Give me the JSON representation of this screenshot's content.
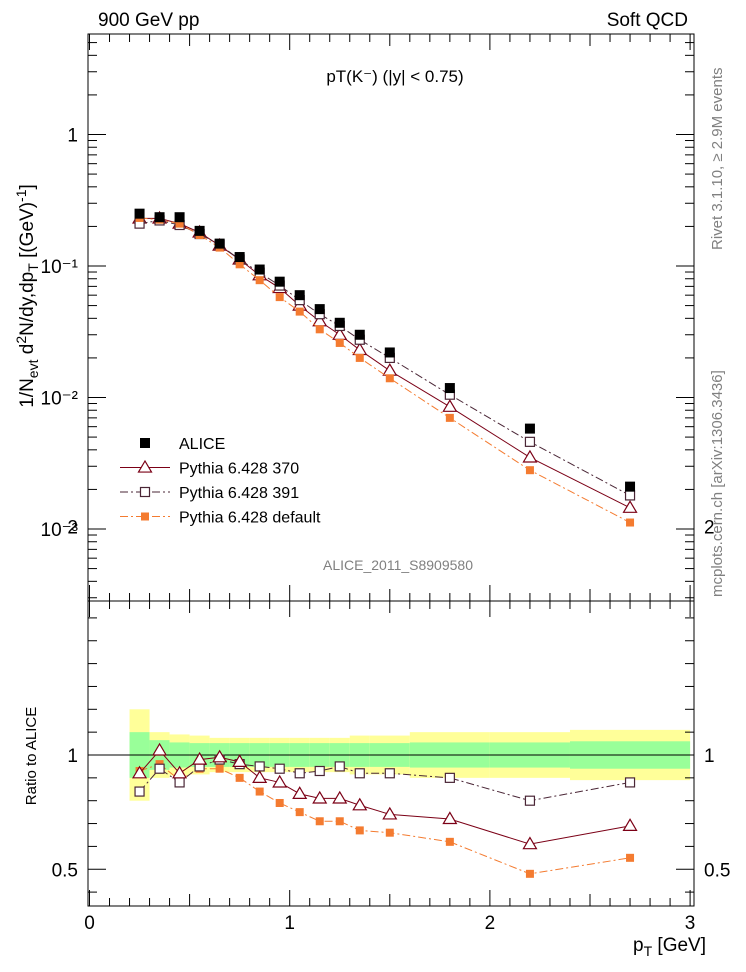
{
  "header": {
    "left": "900 GeV pp",
    "right": "Soft QCD"
  },
  "side_labels": {
    "rivet": "Rivet 3.1.10, ≥ 2.9M events",
    "source": "mcplots.cern.ch [arXiv:1306.3436]"
  },
  "chart_data": [
    {
      "type": "scatter",
      "panel": "main",
      "title": "pT(K⁻) (|y| < 0.75)",
      "watermark": "ALICE_2011_S8909580",
      "ylabel": "1/N_evt d²N/dy,dp_T [(GeV)⁻¹]",
      "yscale": "log",
      "xlim": [
        0,
        3.05
      ],
      "ylim": [
        0.00025,
        6
      ],
      "y_tick_labels": [
        "10⁻³",
        "10⁻²",
        "10⁻¹",
        "1"
      ],
      "x": [
        0.25,
        0.35,
        0.45,
        0.55,
        0.65,
        0.75,
        0.85,
        0.95,
        1.05,
        1.15,
        1.25,
        1.35,
        1.5,
        1.8,
        2.2,
        2.7
      ],
      "series": [
        {
          "name": "ALICE",
          "color": "#000000",
          "marker": "filled-square",
          "values": [
            0.25,
            0.235,
            0.235,
            0.185,
            0.148,
            0.117,
            0.094,
            0.076,
            0.06,
            0.047,
            0.037,
            0.03,
            0.022,
            0.0118,
            0.0058,
            0.0021
          ]
        },
        {
          "name": "Pythia 6.428 370",
          "color": "#7b0016",
          "marker": "open-triangle",
          "line": "solid",
          "values": [
            0.23,
            0.23,
            0.21,
            0.18,
            0.143,
            0.112,
            0.085,
            0.068,
            0.05,
            0.038,
            0.03,
            0.023,
            0.016,
            0.0085,
            0.0035,
            0.00145
          ]
        },
        {
          "name": "Pythia 6.428 391",
          "color": "#4a2636",
          "marker": "open-square",
          "line": "dashdot",
          "values": [
            0.21,
            0.222,
            0.205,
            0.175,
            0.145,
            0.112,
            0.089,
            0.071,
            0.055,
            0.043,
            0.035,
            0.0275,
            0.02,
            0.0105,
            0.0046,
            0.0018
          ]
        },
        {
          "name": "Pythia 6.428 default",
          "color": "#f47b30",
          "marker": "filled-square",
          "line": "dashdot",
          "values": [
            0.232,
            0.225,
            0.21,
            0.172,
            0.138,
            0.103,
            0.078,
            0.058,
            0.045,
            0.033,
            0.026,
            0.02,
            0.014,
            0.007,
            0.0028,
            0.00112
          ]
        }
      ],
      "legend": {
        "placement": "middle-left"
      }
    },
    {
      "type": "line",
      "panel": "ratio",
      "ylabel": "Ratio to ALICE",
      "xlabel": "p_T [GeV]",
      "xlim": [
        0,
        3.05
      ],
      "ylim": [
        0.33,
        2.3
      ],
      "y_tick_labels": [
        "0.5",
        "1",
        "2"
      ],
      "x_tick_labels": [
        "0",
        "1",
        "2",
        "3"
      ],
      "uncertainty_bands": {
        "bins": [
          [
            0.2,
            0.3
          ],
          [
            0.3,
            0.4
          ],
          [
            0.4,
            0.5
          ],
          [
            0.5,
            0.6
          ],
          [
            0.6,
            0.7
          ],
          [
            0.7,
            0.8
          ],
          [
            0.8,
            0.9
          ],
          [
            0.9,
            1.0
          ],
          [
            1.0,
            1.1
          ],
          [
            1.1,
            1.2
          ],
          [
            1.2,
            1.3
          ],
          [
            1.3,
            1.4
          ],
          [
            1.4,
            1.6
          ],
          [
            1.6,
            2.0
          ],
          [
            2.0,
            2.4
          ],
          [
            2.4,
            3.0
          ]
        ],
        "green_half_width": [
          0.1,
          0.065,
          0.055,
          0.052,
          0.052,
          0.052,
          0.052,
          0.052,
          0.052,
          0.052,
          0.052,
          0.052,
          0.052,
          0.055,
          0.055,
          0.06
        ],
        "yellow_half_width": [
          0.2,
          0.1,
          0.09,
          0.085,
          0.075,
          0.075,
          0.075,
          0.075,
          0.075,
          0.075,
          0.075,
          0.085,
          0.085,
          0.1,
          0.1,
          0.11
        ],
        "green_color": "#99ff99",
        "yellow_color": "#ffff99"
      },
      "series": [
        {
          "name": "Pythia 6.428 370",
          "color": "#7b0016",
          "marker": "open-triangle",
          "line": "solid",
          "values": [
            0.92,
            1.02,
            0.92,
            0.98,
            0.99,
            0.97,
            0.9,
            0.88,
            0.83,
            0.81,
            0.81,
            0.78,
            0.74,
            0.72,
            0.61,
            0.69
          ]
        },
        {
          "name": "Pythia 6.428 391",
          "color": "#4a2636",
          "marker": "open-square",
          "line": "dashdot",
          "values": [
            0.84,
            0.94,
            0.88,
            0.95,
            0.98,
            0.96,
            0.95,
            0.94,
            0.92,
            0.93,
            0.95,
            0.92,
            0.92,
            0.9,
            0.8,
            0.88
          ]
        },
        {
          "name": "Pythia 6.428 default",
          "color": "#f47b30",
          "marker": "filled-square",
          "line": "dashdot",
          "values": [
            0.93,
            0.96,
            0.89,
            0.94,
            0.94,
            0.9,
            0.84,
            0.79,
            0.75,
            0.71,
            0.71,
            0.67,
            0.66,
            0.62,
            0.48,
            0.55
          ]
        }
      ]
    }
  ]
}
